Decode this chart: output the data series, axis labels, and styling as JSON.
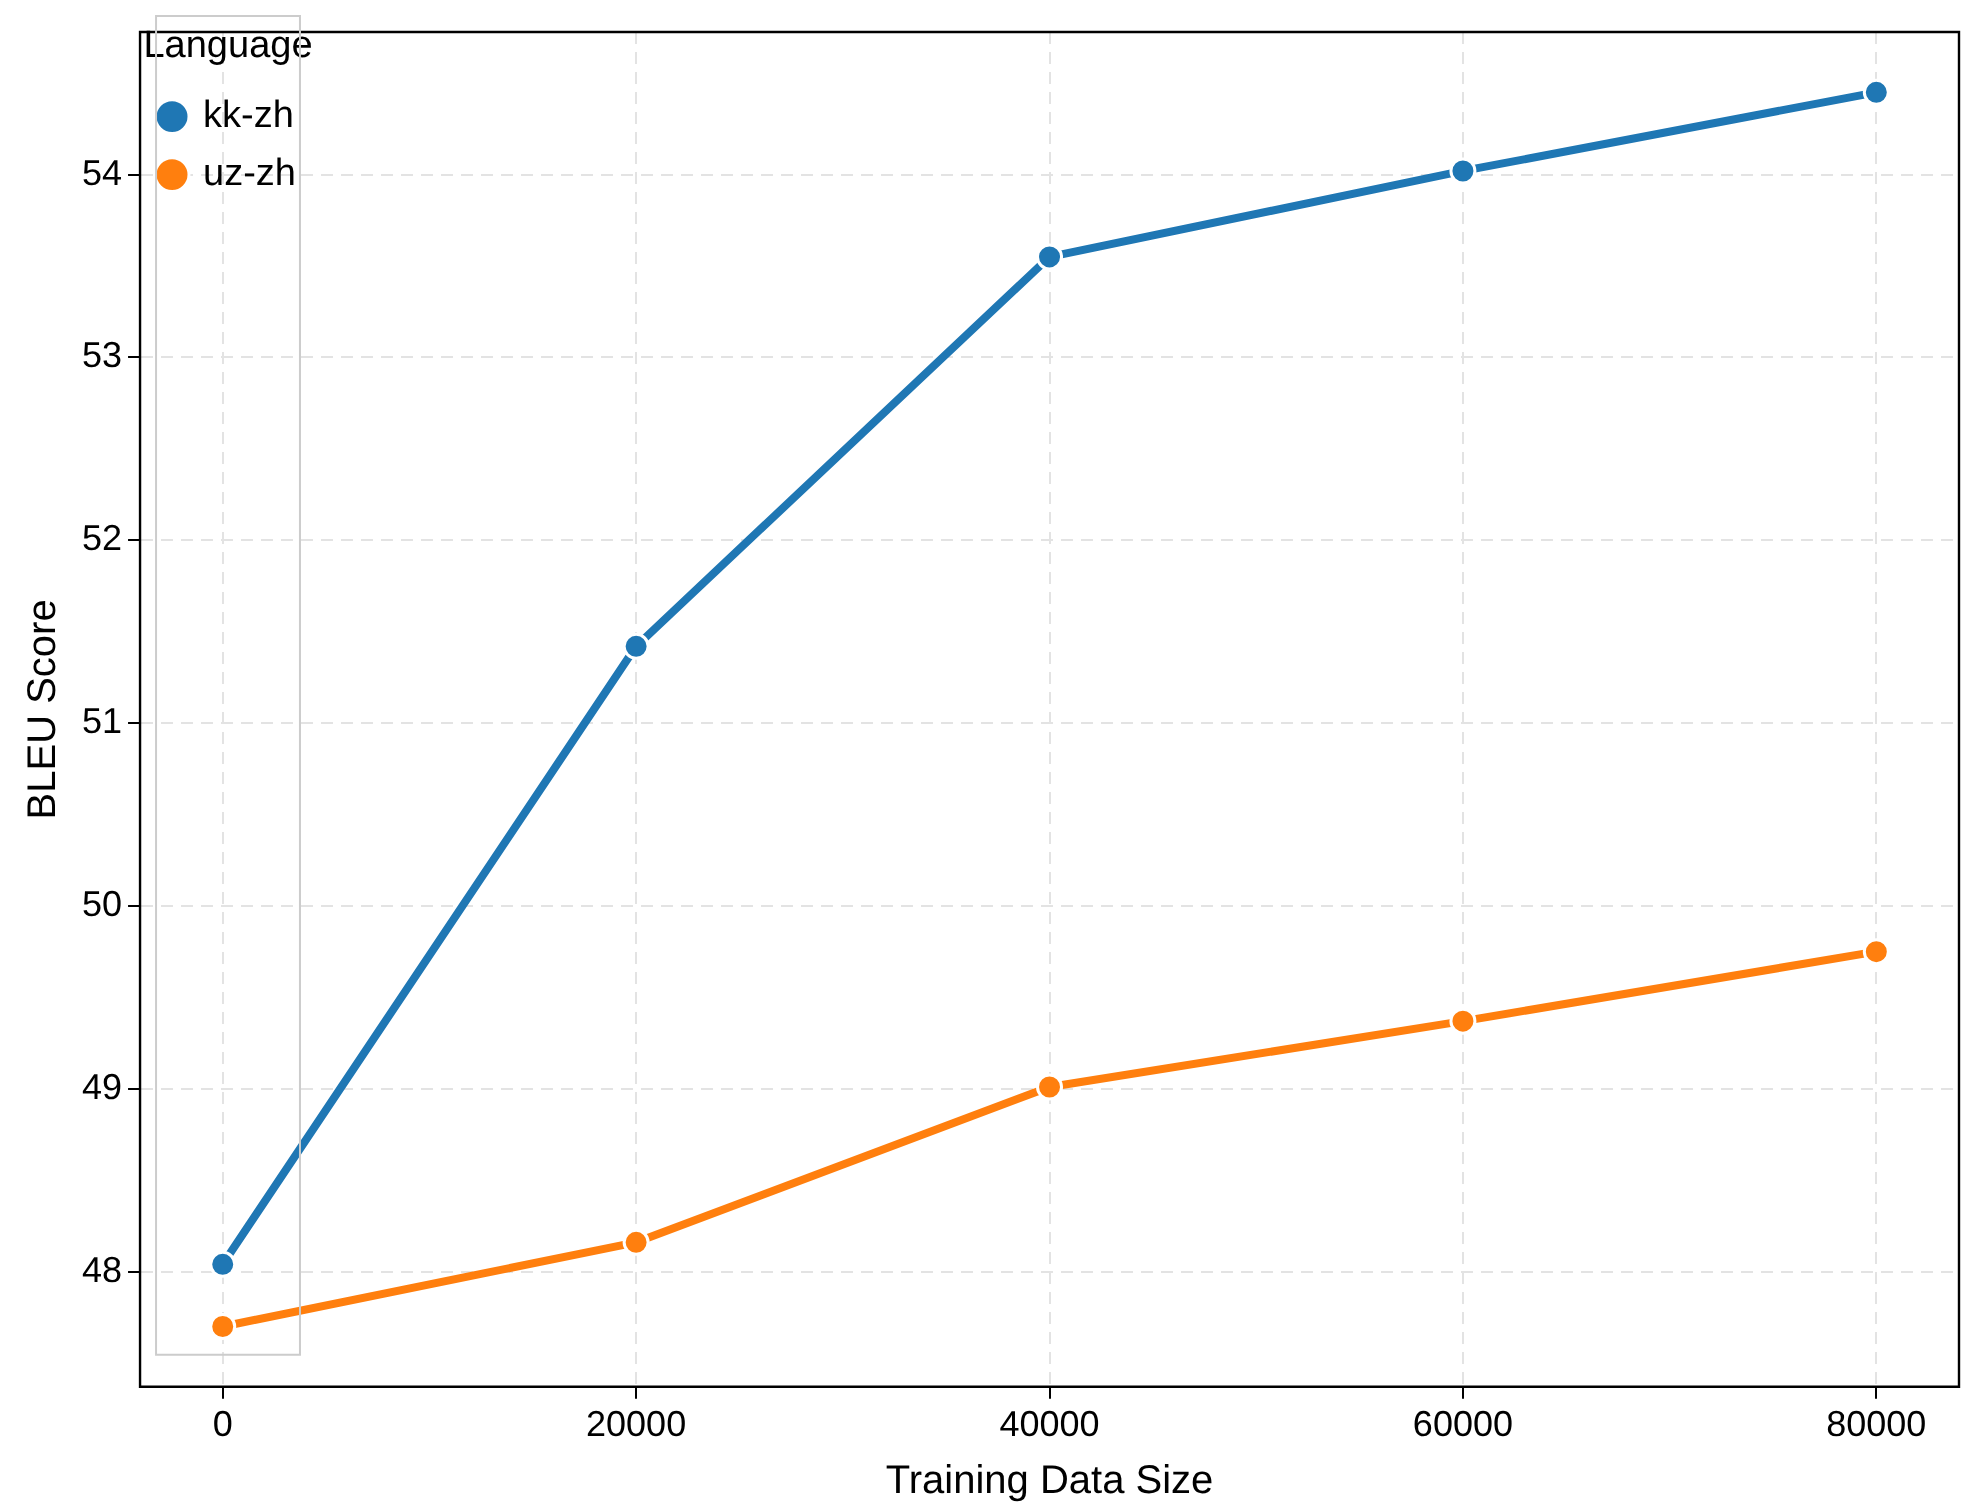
{
  "chart_data": {
    "type": "line",
    "xlabel": "Training Data Size",
    "ylabel": "BLEU Score",
    "legend_title": "Language",
    "legend": "top left",
    "grid": true,
    "marker": "circle",
    "line_style": "solid",
    "x": [
      0,
      20000,
      40000,
      60000,
      80000
    ],
    "xlim": [
      -4000,
      84000
    ],
    "xticks": [
      0,
      20000,
      40000,
      60000,
      80000
    ],
    "ylim": [
      47.37,
      54.78
    ],
    "yticks": [
      48,
      49,
      50,
      51,
      52,
      53,
      54
    ],
    "series": [
      {
        "name": "kk-zh",
        "color": "#1f77b4",
        "values": [
          48.04,
          51.42,
          53.55,
          54.02,
          54.45
        ]
      },
      {
        "name": "uz-zh",
        "color": "#ff7f0e",
        "values": [
          47.7,
          48.16,
          49.01,
          49.37,
          49.75
        ]
      }
    ]
  }
}
